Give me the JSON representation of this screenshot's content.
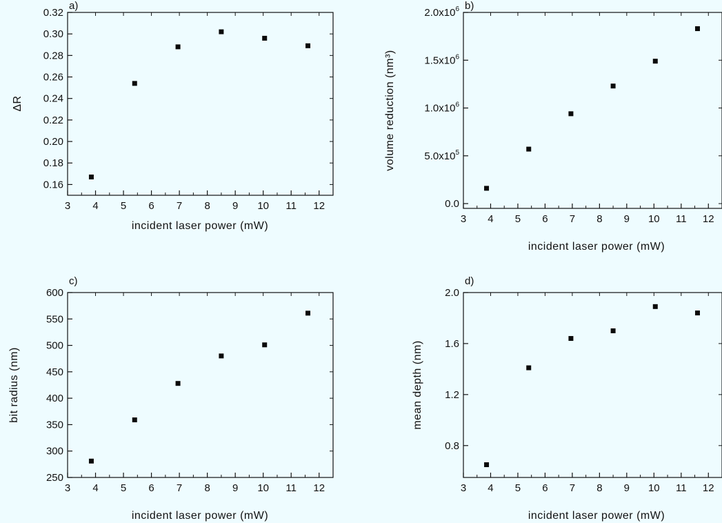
{
  "chart_data": [
    {
      "type": "scatter",
      "panel_label": "a)",
      "xlabel": "incident laser power (mW)",
      "ylabel": "ΔR",
      "xlim": [
        3,
        12.5
      ],
      "ylim": [
        0.15,
        0.32
      ],
      "xticks": [
        {
          "v": 3,
          "label": "3"
        },
        {
          "v": 4,
          "label": "4"
        },
        {
          "v": 5,
          "label": "5"
        },
        {
          "v": 6,
          "label": "6"
        },
        {
          "v": 7,
          "label": "7"
        },
        {
          "v": 8,
          "label": "8"
        },
        {
          "v": 9,
          "label": "9"
        },
        {
          "v": 10,
          "label": "10"
        },
        {
          "v": 11,
          "label": "11"
        },
        {
          "v": 12,
          "label": "12"
        }
      ],
      "yticks": [
        {
          "v": 0.16,
          "label": "0.16"
        },
        {
          "v": 0.18,
          "label": "0.18"
        },
        {
          "v": 0.2,
          "label": "0.20"
        },
        {
          "v": 0.22,
          "label": "0.22"
        },
        {
          "v": 0.24,
          "label": "0.24"
        },
        {
          "v": 0.26,
          "label": "0.26"
        },
        {
          "v": 0.28,
          "label": "0.28"
        },
        {
          "v": 0.3,
          "label": "0.30"
        },
        {
          "v": 0.32,
          "label": "0.32"
        }
      ],
      "x": [
        3.85,
        5.4,
        6.95,
        8.5,
        10.05,
        11.6
      ],
      "y": [
        0.167,
        0.254,
        0.288,
        0.302,
        0.296,
        0.289
      ]
    },
    {
      "type": "scatter",
      "panel_label": "b)",
      "xlabel": "incident laser power (mW)",
      "ylabel": "volume reduction (nm³)",
      "xlim": [
        3,
        12.5
      ],
      "ylim": [
        -50000,
        2000000
      ],
      "xticks": [
        {
          "v": 3,
          "label": "3"
        },
        {
          "v": 4,
          "label": "4"
        },
        {
          "v": 5,
          "label": "5"
        },
        {
          "v": 6,
          "label": "6"
        },
        {
          "v": 7,
          "label": "7"
        },
        {
          "v": 8,
          "label": "8"
        },
        {
          "v": 9,
          "label": "9"
        },
        {
          "v": 10,
          "label": "10"
        },
        {
          "v": 11,
          "label": "11"
        },
        {
          "v": 12,
          "label": "12"
        }
      ],
      "yticks": [
        {
          "v": 0,
          "label": "0.0"
        },
        {
          "v": 500000,
          "label": "5.0x10",
          "exp": "5"
        },
        {
          "v": 1000000,
          "label": "1.0x10",
          "exp": "6"
        },
        {
          "v": 1500000,
          "label": "1.5x10",
          "exp": "6"
        },
        {
          "v": 2000000,
          "label": "2.0x10",
          "exp": "6"
        }
      ],
      "x": [
        3.85,
        5.4,
        6.95,
        8.5,
        10.05,
        11.6
      ],
      "y": [
        160000,
        570000,
        940000,
        1230000,
        1490000,
        1830000
      ]
    },
    {
      "type": "scatter",
      "panel_label": "c)",
      "xlabel": "incident laser power (mW)",
      "ylabel": "bit radius (nm)",
      "xlim": [
        3,
        12.5
      ],
      "ylim": [
        250,
        600
      ],
      "xticks": [
        {
          "v": 3,
          "label": "3"
        },
        {
          "v": 4,
          "label": "4"
        },
        {
          "v": 5,
          "label": "5"
        },
        {
          "v": 6,
          "label": "6"
        },
        {
          "v": 7,
          "label": "7"
        },
        {
          "v": 8,
          "label": "8"
        },
        {
          "v": 9,
          "label": "9"
        },
        {
          "v": 10,
          "label": "10"
        },
        {
          "v": 11,
          "label": "11"
        },
        {
          "v": 12,
          "label": "12"
        }
      ],
      "yticks": [
        {
          "v": 250,
          "label": "250"
        },
        {
          "v": 300,
          "label": "300"
        },
        {
          "v": 350,
          "label": "350"
        },
        {
          "v": 400,
          "label": "400"
        },
        {
          "v": 450,
          "label": "450"
        },
        {
          "v": 500,
          "label": "500"
        },
        {
          "v": 550,
          "label": "550"
        },
        {
          "v": 600,
          "label": "600"
        }
      ],
      "x": [
        3.85,
        5.4,
        6.95,
        8.5,
        10.05,
        11.6
      ],
      "y": [
        281,
        359,
        428,
        480,
        501,
        561
      ]
    },
    {
      "type": "scatter",
      "panel_label": "d)",
      "xlabel": "incident laser power (mW)",
      "ylabel": "mean depth (nm)",
      "xlim": [
        3,
        12.5
      ],
      "ylim": [
        0.55,
        2.0
      ],
      "xticks": [
        {
          "v": 3,
          "label": "3"
        },
        {
          "v": 4,
          "label": "4"
        },
        {
          "v": 5,
          "label": "5"
        },
        {
          "v": 6,
          "label": "6"
        },
        {
          "v": 7,
          "label": "7"
        },
        {
          "v": 8,
          "label": "8"
        },
        {
          "v": 9,
          "label": "9"
        },
        {
          "v": 10,
          "label": "10"
        },
        {
          "v": 11,
          "label": "11"
        },
        {
          "v": 12,
          "label": "12"
        }
      ],
      "yticks": [
        {
          "v": 0.8,
          "label": "0.8"
        },
        {
          "v": 1.2,
          "label": "1.2"
        },
        {
          "v": 1.6,
          "label": "1.6"
        },
        {
          "v": 2.0,
          "label": "2.0"
        }
      ],
      "x": [
        3.85,
        5.4,
        6.95,
        8.5,
        10.05,
        11.6
      ],
      "y": [
        0.65,
        1.41,
        1.64,
        1.7,
        1.89,
        1.84
      ]
    }
  ]
}
